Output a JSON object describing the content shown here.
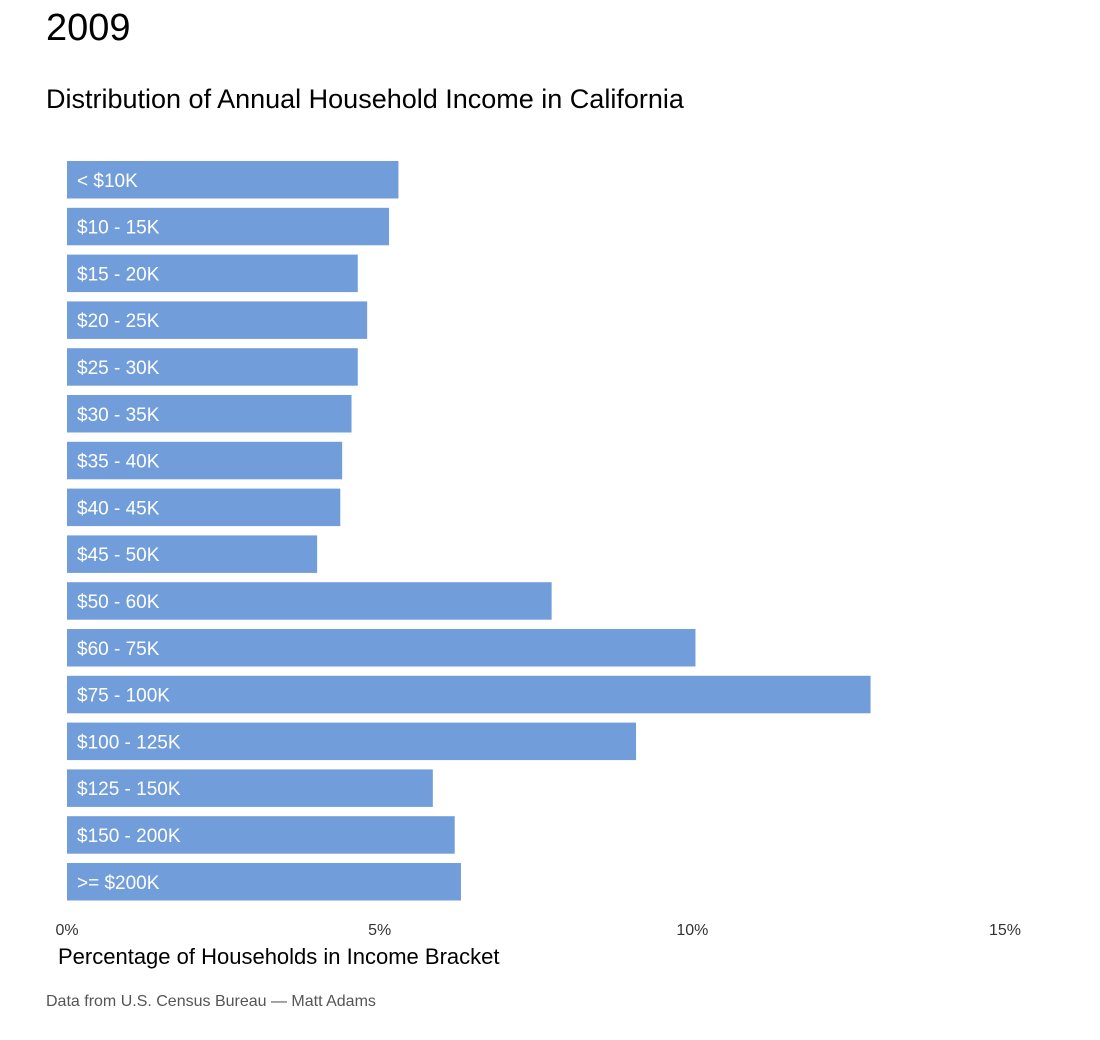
{
  "header": {
    "year": "2009",
    "title": "Distribution of Annual Household Income in California"
  },
  "chart_data": {
    "type": "bar",
    "orientation": "horizontal",
    "title": "Distribution of Annual Household Income in California",
    "categories": [
      "< $10K",
      "$10 - 15K",
      "$15 - 20K",
      "$20 - 25K",
      "$25 - 30K",
      "$30 - 35K",
      "$35 - 40K",
      "$40 - 45K",
      "$45 - 50K",
      "$50 - 60K",
      "$60 - 75K",
      "$75 - 100K",
      "$100 - 125K",
      "$125 - 150K",
      "$150 - 200K",
      ">= $200K"
    ],
    "values": [
      5.3,
      5.15,
      4.65,
      4.8,
      4.65,
      4.55,
      4.4,
      4.37,
      4.0,
      7.75,
      10.05,
      12.85,
      9.1,
      5.85,
      6.2,
      6.3
    ],
    "unit": "%",
    "xlim": [
      0,
      15
    ],
    "xticks": [
      0,
      5,
      10,
      15
    ],
    "xtick_labels": [
      "0%",
      "5%",
      "10%",
      "15%"
    ],
    "xlabel": "Percentage of Households in Income Bracket",
    "ylabel": "",
    "grid": false,
    "legend": "none",
    "bar_color": "#729ddb",
    "label_position": "inside-left"
  },
  "footer": {
    "source": "Data from U.S. Census Bureau — Matt Adams"
  }
}
